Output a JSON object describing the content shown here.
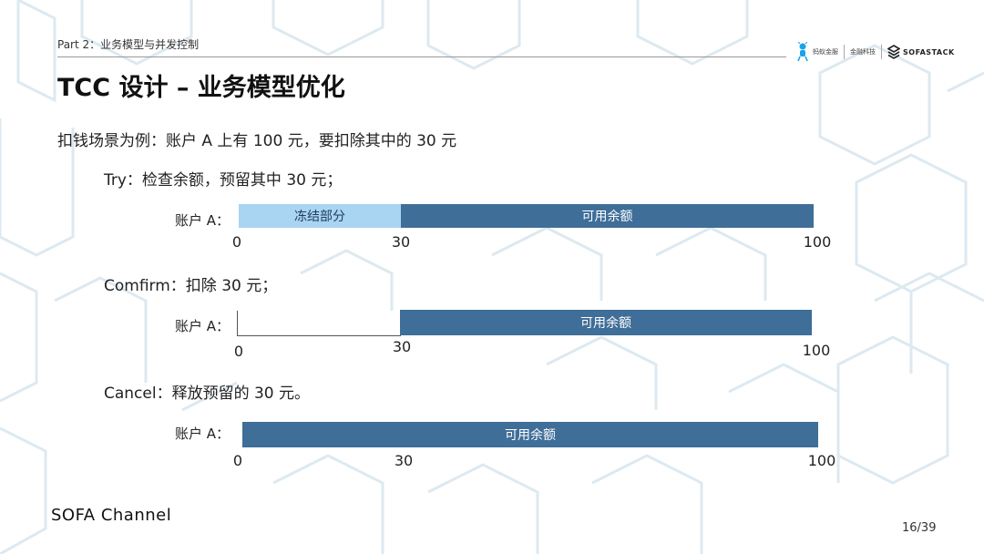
{
  "header": {
    "section_label": "Part 2：业务模型与并发控制",
    "logos": {
      "ant_financial": "蚂蚁金服",
      "fintech": "金融科技",
      "sofastack": "SOFASTACK"
    }
  },
  "title": "TCC 设计 – 业务模型优化",
  "intro": "扣钱场景为例：账户 A 上有 100 元，要扣除其中的 30 元",
  "cases": [
    {
      "label": "Try：检查余额，预留其中 30 元；",
      "account_label": "账户 A：",
      "frozen_label": "冻结部分",
      "available_label": "可用余额",
      "ticks": [
        "0",
        "30",
        "100"
      ]
    },
    {
      "label": "Comfirm：扣除 30 元；",
      "account_label": "账户 A：",
      "available_label": "可用余额",
      "ticks": [
        "0",
        "30",
        "100"
      ]
    },
    {
      "label": "Cancel：释放预留的 30 元。",
      "account_label": "账户 A：",
      "available_label": "可用余额",
      "ticks": [
        "0",
        "30",
        "100"
      ]
    }
  ],
  "footer": {
    "brand": "SOFA Channel",
    "page": "16/39"
  },
  "colors": {
    "frozen": "#a9d4f2",
    "available": "#3f6e98",
    "background_pattern": "#dde9f1"
  }
}
